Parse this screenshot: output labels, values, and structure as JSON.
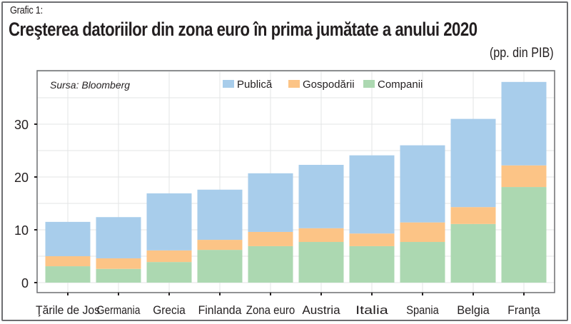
{
  "header": {
    "kicker": "Grafic 1:",
    "title": "Creşterea datoriilor din zona euro în prima jumătate a anului 2020",
    "unit": "(pp. din PIB)"
  },
  "chart_data": {
    "type": "bar",
    "stacked": true,
    "title": "Creşterea datoriilor din zona euro în prima jumătate a anului 2020",
    "subtitle": "(pp. din PIB)",
    "source": "Sursa: Bloomberg",
    "xlabel": "",
    "ylabel": "",
    "ylim": [
      0,
      40
    ],
    "yticks": [
      0,
      10,
      20,
      30
    ],
    "grid": true,
    "legend_position": "top-center",
    "categories": [
      "Ţările de Jos",
      "Germania",
      "Grecia",
      "Finlanda",
      "Zona euro",
      "Austria",
      "Italia",
      "Spania",
      "Belgia",
      "Franţa"
    ],
    "series": [
      {
        "name": "Companii",
        "color": "#acd8b1",
        "values": [
          3.1,
          2.6,
          3.9,
          6.2,
          6.9,
          7.7,
          6.9,
          7.7,
          11.1,
          18.1
        ]
      },
      {
        "name": "Gospodării",
        "color": "#fcc486",
        "values": [
          1.9,
          2.0,
          2.2,
          1.9,
          2.7,
          2.6,
          2.4,
          3.7,
          3.2,
          4.1
        ]
      },
      {
        "name": "Publică",
        "color": "#a8cdeb",
        "values": [
          6.5,
          7.8,
          10.8,
          9.5,
          11.1,
          12.0,
          14.8,
          14.6,
          16.7,
          15.8
        ]
      }
    ],
    "legend_order": [
      "Publică",
      "Gospodării",
      "Companii"
    ]
  }
}
